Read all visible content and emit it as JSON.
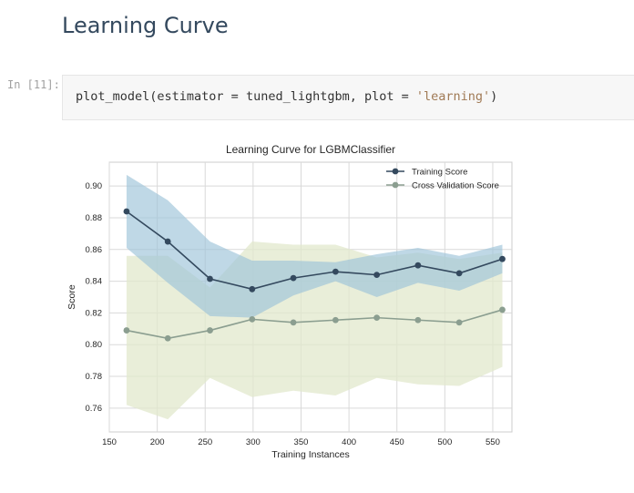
{
  "section": {
    "heading": "Learning Curve"
  },
  "cell": {
    "prompt": "In [11]:",
    "code": {
      "func": "plot_model",
      "args": "(estimator = tuned_lightgbm, plot = ",
      "string": "'learning'",
      "close": ")"
    }
  },
  "colors": {
    "training": "#34495e",
    "training_band": "#9cc3d8",
    "cv": "#8b9e90",
    "cv_band": "#e1e8cc"
  },
  "chart_data": {
    "type": "line",
    "title": "Learning Curve for LGBMClassifier",
    "xlabel": "Training Instances",
    "ylabel": "Score",
    "xlim": [
      150,
      570
    ],
    "ylim": [
      0.745,
      0.915
    ],
    "xticks": [
      150,
      200,
      250,
      300,
      350,
      400,
      450,
      500,
      550
    ],
    "yticks": [
      0.76,
      0.78,
      0.8,
      0.82,
      0.84,
      0.86,
      0.88,
      0.9
    ],
    "grid": true,
    "legend": "top-right",
    "x": [
      168,
      211,
      255,
      299,
      342,
      386,
      429,
      472,
      515,
      560
    ],
    "series": [
      {
        "name": "Training Score",
        "values": [
          0.884,
          0.865,
          0.8415,
          0.835,
          0.842,
          0.846,
          0.844,
          0.85,
          0.845,
          0.854
        ],
        "upper": [
          0.907,
          0.891,
          0.865,
          0.853,
          0.853,
          0.852,
          0.857,
          0.861,
          0.856,
          0.863
        ],
        "lower": [
          0.861,
          0.839,
          0.818,
          0.817,
          0.831,
          0.84,
          0.83,
          0.839,
          0.834,
          0.845
        ]
      },
      {
        "name": "Cross Validation Score",
        "values": [
          0.809,
          0.804,
          0.809,
          0.816,
          0.814,
          0.8155,
          0.817,
          0.8155,
          0.814,
          0.822
        ],
        "upper": [
          0.856,
          0.856,
          0.836,
          0.865,
          0.863,
          0.863,
          0.855,
          0.858,
          0.854,
          0.858
        ],
        "lower": [
          0.762,
          0.753,
          0.779,
          0.767,
          0.771,
          0.768,
          0.779,
          0.775,
          0.774,
          0.786
        ]
      }
    ]
  }
}
